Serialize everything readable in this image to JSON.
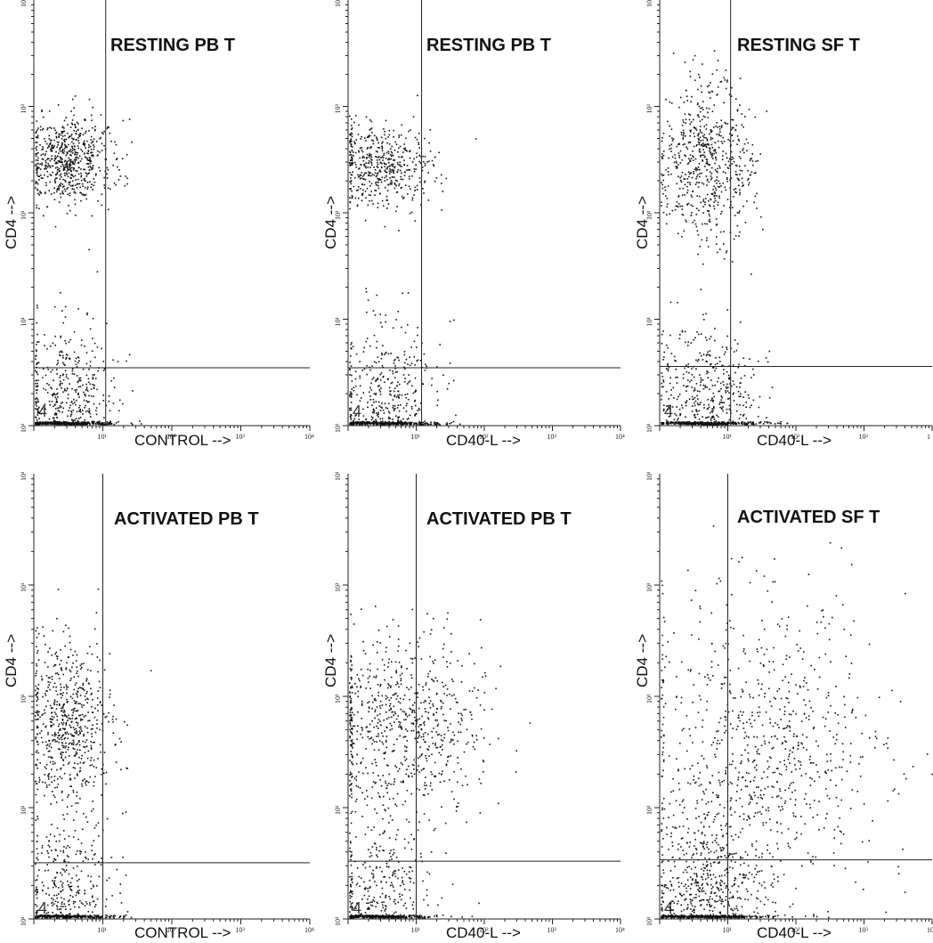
{
  "figure": {
    "quadrant_marker": "4"
  },
  "colors": {
    "ink": "#111111",
    "background": "#ffffff"
  },
  "chart_data": [
    {
      "type": "scatter",
      "title": "RESTING PB T",
      "xlabel": "CONTROL -->",
      "ylabel": "CD4 -->",
      "xscale": "log",
      "yscale": "log",
      "xlim": [
        1,
        10000
      ],
      "ylim": [
        1,
        10000
      ],
      "x_ticks": [
        "10¹",
        "10²",
        "10³",
        "10⁴"
      ],
      "y_ticks": [
        "10¹",
        "10³",
        "10¹",
        "10¹",
        "10¹"
      ],
      "quadrant_gate": {
        "x": 11,
        "y": 3.5
      },
      "clusters": [
        {
          "x": 3.0,
          "y": 300,
          "spread_x": 0.16,
          "spread_y": 0.1,
          "count": 650
        },
        {
          "x": 3.0,
          "y": 1.35,
          "spread_x": 0.18,
          "spread_y": 0.2,
          "count": 600
        }
      ]
    },
    {
      "type": "scatter",
      "title": "RESTING PB T",
      "xlabel": "CD40-L -->",
      "ylabel": "CD4 -->",
      "xscale": "log",
      "yscale": "log",
      "xlim": [
        1,
        10000
      ],
      "ylim": [
        1,
        10000
      ],
      "x_ticks": [
        "10¹",
        "10²",
        "10³",
        "10⁴"
      ],
      "y_ticks": [
        "10¹",
        "10³",
        "10¹",
        "10¹",
        "10¹"
      ],
      "quadrant_gate": {
        "x": 12,
        "y": 3.5
      },
      "clusters": [
        {
          "x": 3.2,
          "y": 280,
          "spread_x": 0.18,
          "spread_y": 0.1,
          "count": 500
        },
        {
          "x": 3.5,
          "y": 1.4,
          "spread_x": 0.2,
          "spread_y": 0.2,
          "count": 550
        }
      ]
    },
    {
      "type": "scatter",
      "title": "RESTING SF T",
      "xlabel": "CD40-L -->",
      "ylabel": "CD4 -->",
      "xscale": "log",
      "yscale": "log",
      "xlim": [
        1,
        10000
      ],
      "ylim": [
        1,
        10000
      ],
      "x_ticks": [
        "10¹",
        "10²",
        "10³",
        "1"
      ],
      "y_ticks": [
        "10¹",
        "10³",
        "10¹",
        "10¹",
        "10¹"
      ],
      "quadrant_gate": {
        "x": 11,
        "y": 3.6
      },
      "clusters": [
        {
          "x": 5.0,
          "y": 300,
          "spread_x": 0.17,
          "spread_y": 0.18,
          "count": 650
        },
        {
          "x": 5.0,
          "y": 1.45,
          "spread_x": 0.18,
          "spread_y": 0.2,
          "count": 600
        }
      ]
    },
    {
      "type": "scatter",
      "title": "ACTIVATED PB T",
      "xlabel": "CONTROL -->",
      "ylabel": "CD4 -->",
      "xscale": "log",
      "yscale": "log",
      "xlim": [
        1,
        10000
      ],
      "ylim": [
        1,
        10000
      ],
      "x_ticks": [
        "10¹",
        "10²",
        "10³",
        "10⁴"
      ],
      "y_ticks": [
        "10¹",
        "10³",
        "10¹",
        "10¹",
        "10¹"
      ],
      "quadrant_gate": {
        "x": 10,
        "y": 3.2
      },
      "clusters": [
        {
          "x": 3.0,
          "y": 60,
          "spread_x": 0.16,
          "spread_y": 0.18,
          "count": 650
        },
        {
          "x": 3.0,
          "y": 1.3,
          "spread_x": 0.17,
          "spread_y": 0.2,
          "count": 450
        }
      ]
    },
    {
      "type": "scatter",
      "title": "ACTIVATED PB T",
      "xlabel": "CD40-L -->",
      "ylabel": "CD4 -->",
      "xscale": "log",
      "yscale": "log",
      "xlim": [
        1,
        10000
      ],
      "ylim": [
        1,
        10000
      ],
      "x_ticks": [
        "10¹",
        "10²",
        "10³",
        "10⁴"
      ],
      "y_ticks": [
        "10¹",
        "10³",
        "10¹",
        "10¹",
        "10¹"
      ],
      "quadrant_gate": {
        "x": 10,
        "y": 3.3
      },
      "clusters": [
        {
          "x": 6.0,
          "y": 55,
          "spread_x": 0.3,
          "spread_y": 0.2,
          "count": 750
        },
        {
          "x": 3.0,
          "y": 1.3,
          "spread_x": 0.2,
          "spread_y": 0.2,
          "count": 450
        }
      ]
    },
    {
      "type": "scatter",
      "title": "ACTIVATED SF T",
      "xlabel": "CD40-L -->",
      "ylabel": "CD4 -->",
      "xscale": "log",
      "yscale": "log",
      "xlim": [
        1,
        10000
      ],
      "ylim": [
        1,
        10000
      ],
      "x_ticks": [
        "10¹",
        "10²",
        "10³",
        "10"
      ],
      "y_ticks": [
        "10¹",
        "10³",
        "10¹",
        "10¹",
        "10¹"
      ],
      "quadrant_gate": {
        "x": 10,
        "y": 3.4
      },
      "clusters": [
        {
          "x": 30,
          "y": 35,
          "spread_x": 0.45,
          "spread_y": 0.33,
          "count": 850
        },
        {
          "x": 5.0,
          "y": 1.4,
          "spread_x": 0.2,
          "spread_y": 0.2,
          "count": 700
        }
      ]
    }
  ]
}
